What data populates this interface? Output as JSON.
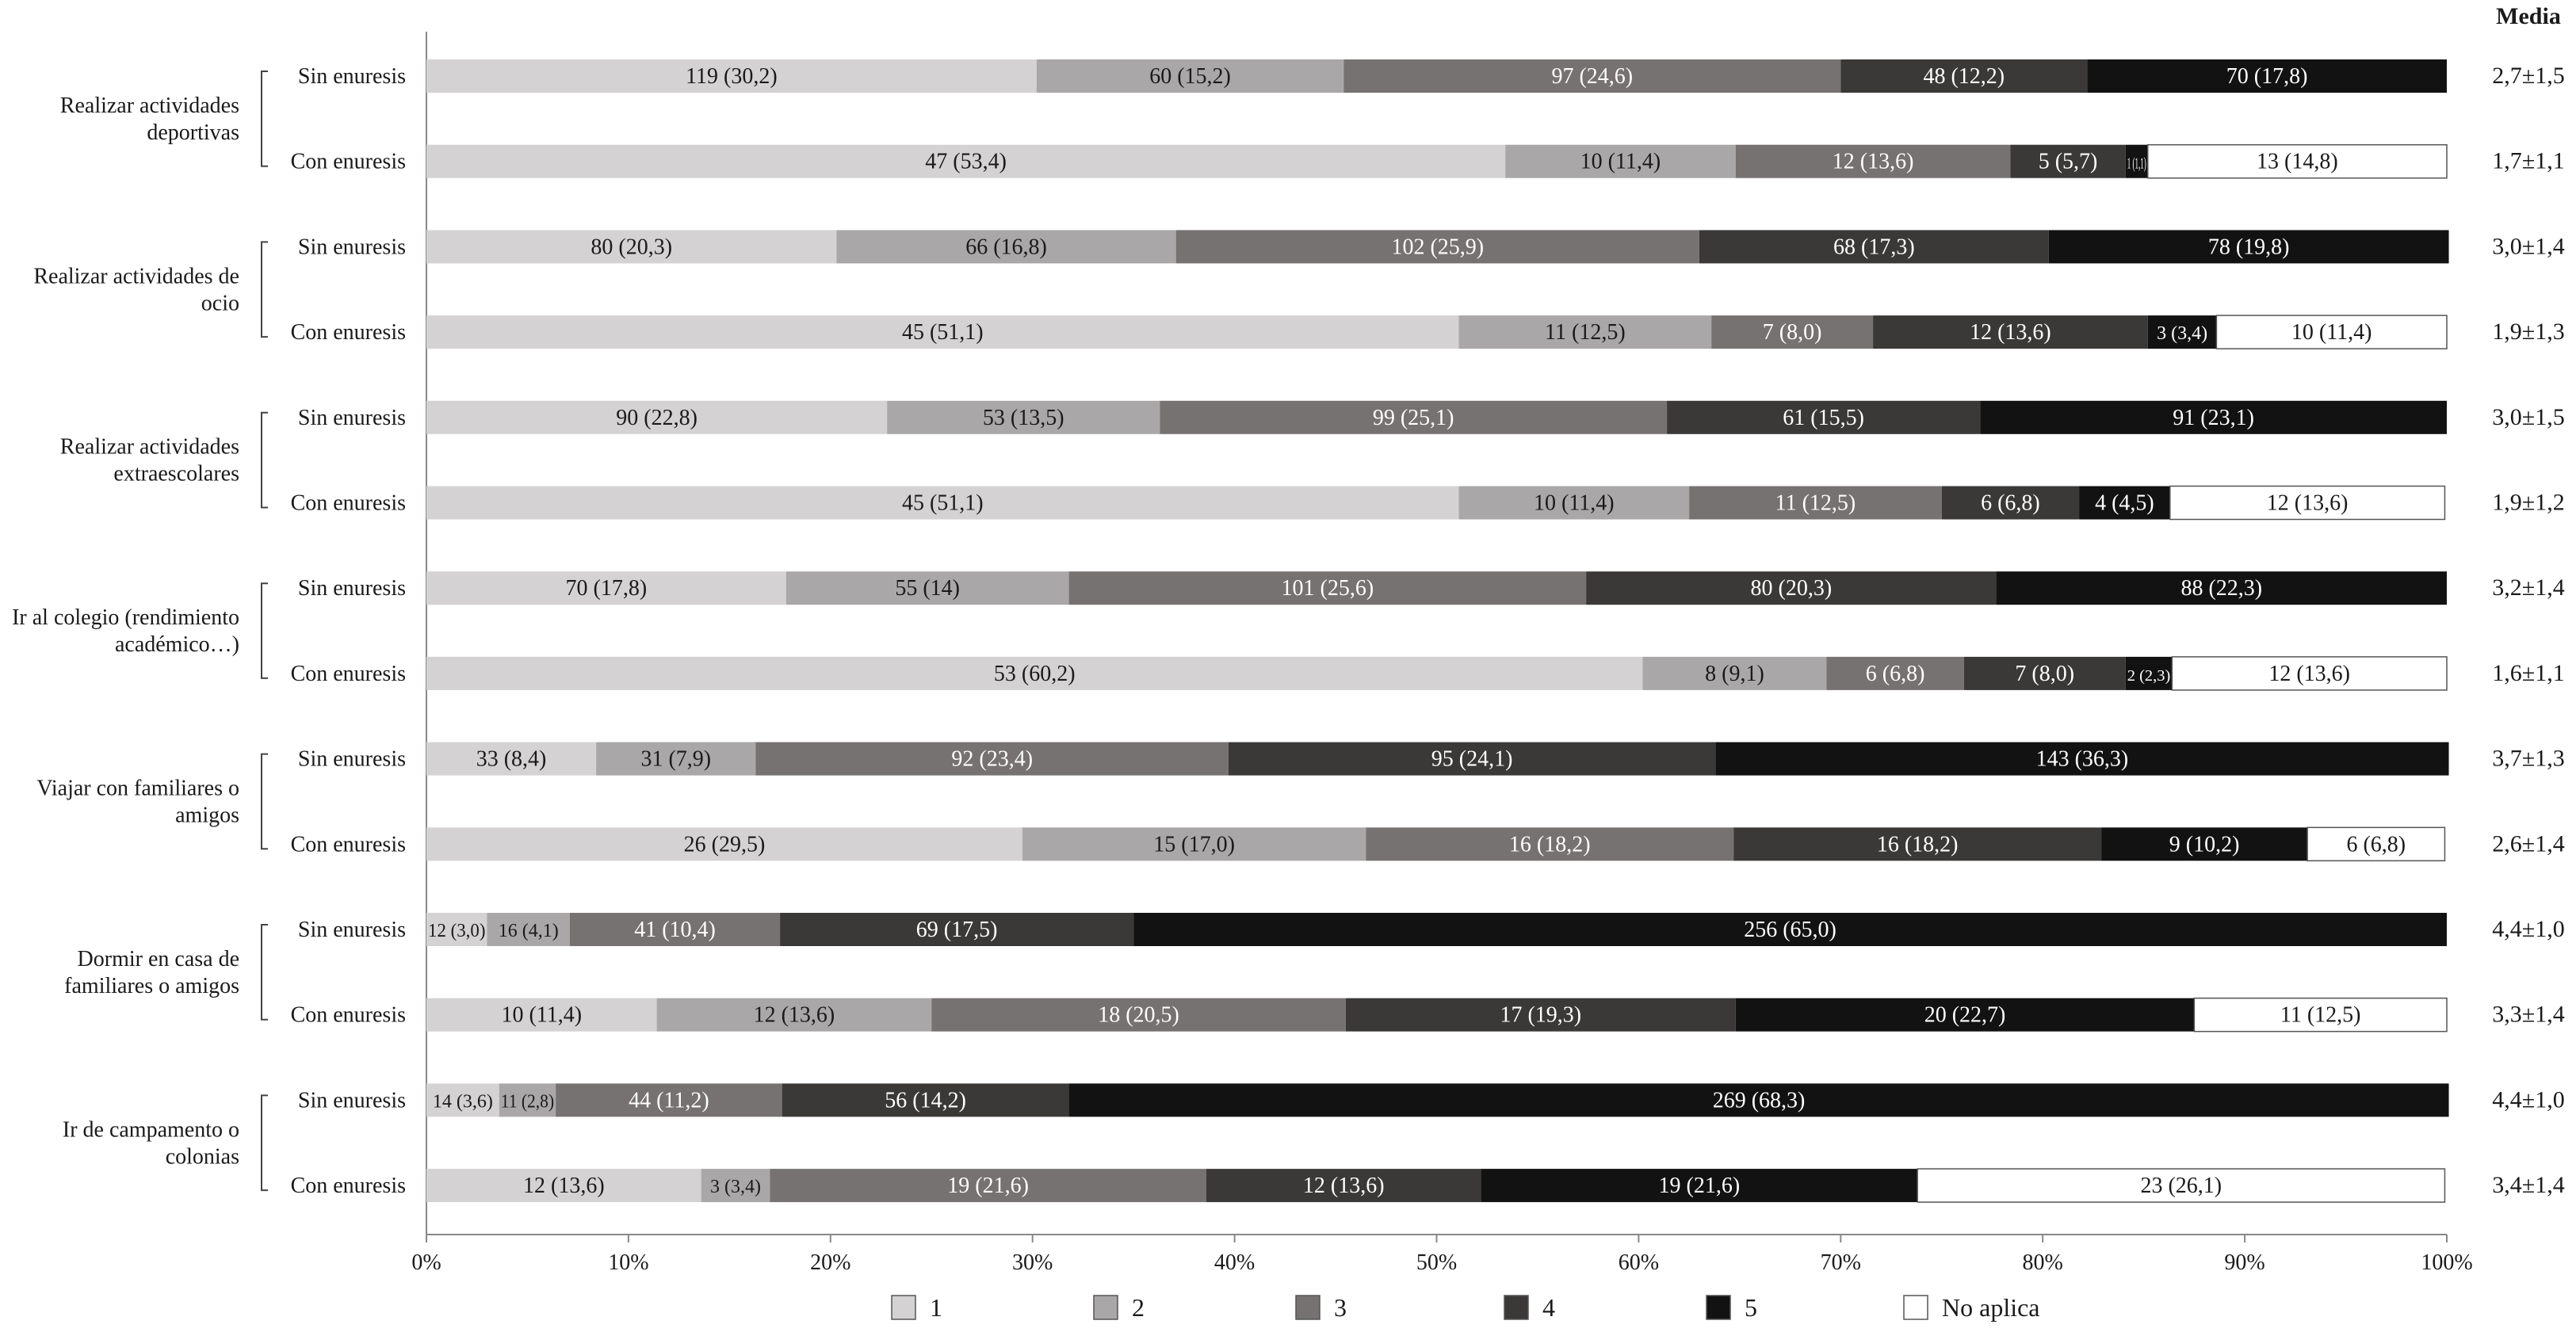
{
  "chart_data": {
    "type": "bar",
    "orientation": "horizontal",
    "stacked": true,
    "percent_scale": true,
    "mean_header": "Media",
    "categories": [
      "Sin enuresis",
      "Con enuresis",
      "Sin enuresis",
      "Con enuresis",
      "Sin enuresis",
      "Con enuresis",
      "Sin enuresis",
      "Con enuresis",
      "Sin enuresis",
      "Con enuresis",
      "Sin enuresis",
      "Con enuresis",
      "Sin enuresis",
      "Con enuresis"
    ],
    "groups": [
      {
        "label": [
          "Realizar actividades",
          "deportivas"
        ],
        "rows": [
          0,
          1
        ]
      },
      {
        "label": [
          "Realizar actividades de",
          "ocio"
        ],
        "rows": [
          2,
          3
        ]
      },
      {
        "label": [
          "Realizar actividades",
          "extraescolares"
        ],
        "rows": [
          4,
          5
        ]
      },
      {
        "label": [
          "Ir al colegio (rendimiento",
          "académico…)"
        ],
        "rows": [
          6,
          7
        ]
      },
      {
        "label": [
          "Viajar con familiares o",
          "amigos"
        ],
        "rows": [
          8,
          9
        ]
      },
      {
        "label": [
          "Dormir en casa de",
          "familiares o amigos"
        ],
        "rows": [
          10,
          11
        ]
      },
      {
        "label": [
          "Ir de campamento o",
          "colonias"
        ],
        "rows": [
          12,
          13
        ]
      }
    ],
    "series": [
      {
        "name": "1",
        "color": "#d4d2d2",
        "values": [
          30.2,
          53.4,
          20.3,
          51.1,
          22.8,
          51.1,
          17.8,
          60.2,
          8.4,
          29.5,
          3.0,
          11.4,
          3.6,
          13.6
        ],
        "labels": [
          "119 (30,2)",
          "47 (53,4)",
          "80 (20,3)",
          "45 (51,1)",
          "90 (22,8)",
          "45 (51,1)",
          "70 (17,8)",
          "53 (60,2)",
          "33 (8,4)",
          "26 (29,5)",
          "12 (3,0)",
          "10 (11,4)",
          "14 (3,6)",
          "12 (13,6)"
        ]
      },
      {
        "name": "2",
        "color": "#a9a7a7",
        "values": [
          15.2,
          11.4,
          16.8,
          12.5,
          13.5,
          11.4,
          14.0,
          9.1,
          7.9,
          17.0,
          4.1,
          13.6,
          2.8,
          3.4
        ],
        "labels": [
          "60 (15,2)",
          "10 (11,4)",
          "66 (16,8)",
          "11 (12,5)",
          "53 (13,5)",
          "10 (11,4)",
          "55 (14)",
          "8 (9,1)",
          "31 (7,9)",
          "15 (17,0)",
          "16 (4,1)",
          "12 (13,6)",
          "11 (2,8)",
          "3 (3,4)"
        ]
      },
      {
        "name": "3",
        "color": "#767272",
        "values": [
          24.6,
          13.6,
          25.9,
          8.0,
          25.1,
          12.5,
          25.6,
          6.8,
          23.4,
          18.2,
          10.4,
          20.5,
          11.2,
          21.6
        ],
        "labels": [
          "97 (24,6)",
          "12 (13,6)",
          "102 (25,9)",
          "7 (8,0)",
          "99 (25,1)",
          "11 (12,5)",
          "101 (25,6)",
          "6 (6,8)",
          "92 (23,4)",
          "16 (18,2)",
          "41 (10,4)",
          "18 (20,5)",
          "44 (11,2)",
          "19 (21,6)"
        ]
      },
      {
        "name": "4",
        "color": "#3b3838",
        "values": [
          12.2,
          5.7,
          17.3,
          13.6,
          15.5,
          6.8,
          20.3,
          8.0,
          24.1,
          18.2,
          17.5,
          19.3,
          14.2,
          13.6
        ],
        "labels": [
          "48 (12,2)",
          "5 (5,7)",
          "68 (17,3)",
          "12 (13,6)",
          "61 (15,5)",
          "6 (6,8)",
          "80 (20,3)",
          "7 (8,0)",
          "95 (24,1)",
          "16 (18,2)",
          "69 (17,5)",
          "17 (19,3)",
          "56 (14,2)",
          "12 (13,6)"
        ]
      },
      {
        "name": "5",
        "color": "#121212",
        "values": [
          17.8,
          1.1,
          19.8,
          3.4,
          23.1,
          4.5,
          22.3,
          2.3,
          36.3,
          10.2,
          65.0,
          22.7,
          68.3,
          21.6
        ],
        "labels": [
          "70 (17,8)",
          "1 (1,1)",
          "78 (19,8)",
          "3 (3,4)",
          "91 (23,1)",
          "4 (4,5)",
          "88 (22,3)",
          "2 (2,3)",
          "143 (36,3)",
          "9 (10,2)",
          "256 (65,0)",
          "20 (22,7)",
          "269 (68,3)",
          "19 (21,6)"
        ]
      },
      {
        "name": "No aplica",
        "color": "#ffffff",
        "values": [
          0,
          14.8,
          0,
          11.4,
          0,
          13.6,
          0,
          13.6,
          0,
          6.8,
          0,
          12.5,
          0,
          26.1
        ],
        "labels": [
          "",
          "13 (14,8)",
          "",
          "10 (11,4)",
          "",
          "12 (13,6)",
          "",
          "12 (13,6)",
          "",
          "6 (6,8)",
          "",
          "11 (12,5)",
          "",
          "23 (26,1)"
        ]
      }
    ],
    "means": [
      "2,7±1,5",
      "1,7±1,1",
      "3,0±1,4",
      "1,9±1,3",
      "3,0±1,5",
      "1,9±1,2",
      "3,2±1,4",
      "1,6±1,1",
      "3,7±1,3",
      "2,6±1,4",
      "4,4±1,0",
      "3,3±1,4",
      "4,4±1,0",
      "3,4±1,4"
    ],
    "xlim": [
      0,
      100
    ],
    "xticks": [
      "0%",
      "10%",
      "20%",
      "30%",
      "40%",
      "50%",
      "60%",
      "70%",
      "80%",
      "90%",
      "100%"
    ],
    "grid": false,
    "legend_position": "bottom"
  }
}
